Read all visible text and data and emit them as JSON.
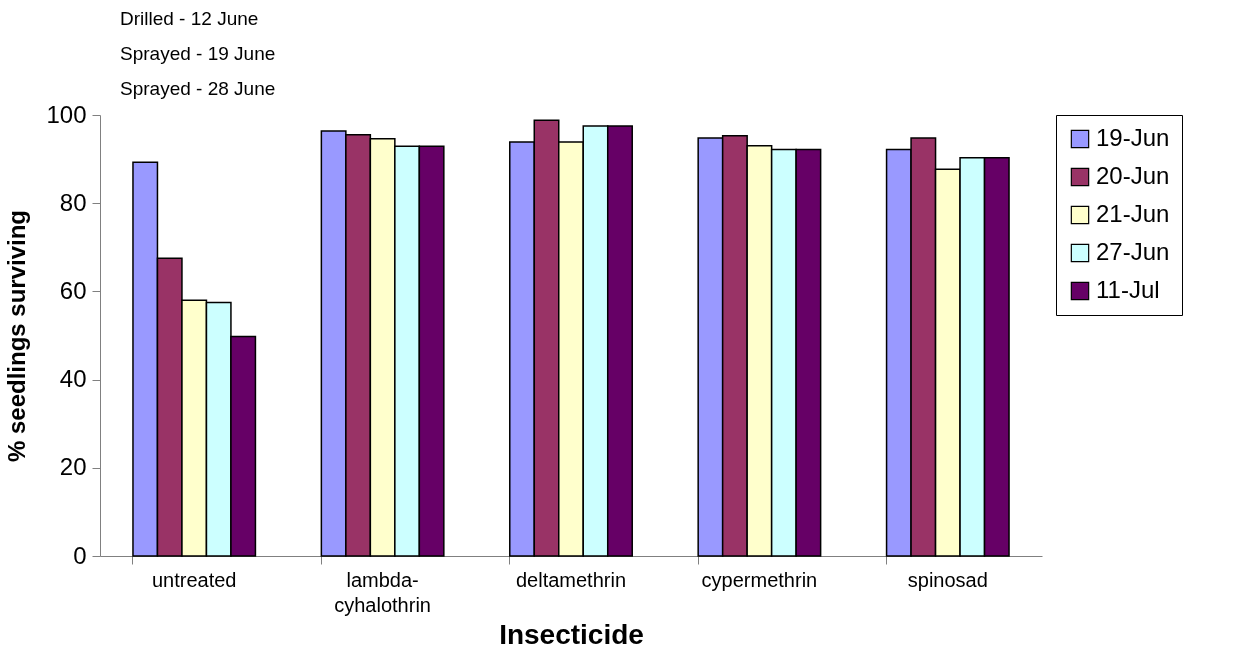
{
  "chart_data": {
    "type": "bar",
    "annotations": [
      "Drilled - 12 June",
      "Sprayed - 19 June",
      "Sprayed - 28 June"
    ],
    "xlabel": "Insecticide",
    "ylabel": "% seedlings surviving",
    "categories": [
      "untreated",
      "lambda-cyhalothrin",
      "deltamethrin",
      "cypermethrin",
      "spinosad"
    ],
    "series": [
      {
        "name": "19-Jun",
        "color": "#9999ff",
        "values": [
          89.3,
          96.4,
          93.9,
          94.8,
          92.2
        ]
      },
      {
        "name": "20-Jun",
        "color": "#993366",
        "values": [
          67.5,
          95.5,
          98.8,
          95.3,
          94.8
        ]
      },
      {
        "name": "21-Jun",
        "color": "#ffffcc",
        "values": [
          58.0,
          94.6,
          93.9,
          93.0,
          87.7
        ]
      },
      {
        "name": "27-Jun",
        "color": "#ccffff",
        "values": [
          57.5,
          92.9,
          97.5,
          92.2,
          90.3
        ]
      },
      {
        "name": "11-Jul",
        "color": "#660066",
        "values": [
          49.8,
          92.9,
          97.5,
          92.2,
          90.3
        ]
      }
    ],
    "ylim": [
      0,
      100
    ],
    "yticks": [
      0,
      20,
      40,
      60,
      80,
      100
    ],
    "grid": false,
    "legend": "right"
  }
}
